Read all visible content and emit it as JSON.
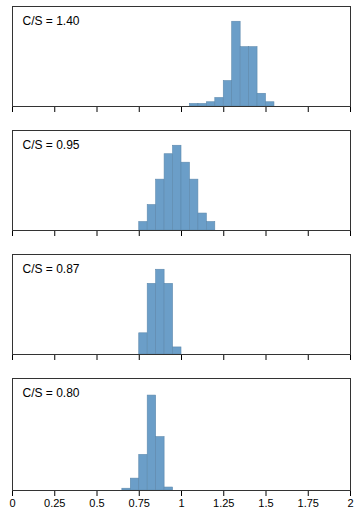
{
  "chart_data": [
    {
      "type": "histogram",
      "title": "C/S = 1.40",
      "bins": [
        1.05,
        1.1,
        1.15,
        1.2,
        1.25,
        1.3,
        1.35,
        1.4,
        1.45,
        1.5,
        1.55
      ],
      "values": [
        0.3,
        0.3,
        0.5,
        1,
        3,
        10,
        7,
        7,
        1.5,
        0.5
      ],
      "color": "#6b9ec8",
      "xlim": [
        0,
        2
      ],
      "xticks": [
        0,
        0.25,
        0.5,
        0.75,
        1,
        1.25,
        1.5,
        1.75,
        2
      ],
      "ylim": [
        0,
        11.8
      ],
      "tick_labels": false
    },
    {
      "type": "histogram",
      "title": "C/S = 0.95",
      "bins": [
        0.75,
        0.8,
        0.85,
        0.9,
        0.95,
        1.0,
        1.05,
        1.1,
        1.15,
        1.2
      ],
      "values": [
        1,
        3,
        6,
        9,
        10,
        8,
        6,
        2,
        1
      ],
      "color": "#6b9ec8",
      "xlim": [
        0,
        2
      ],
      "xticks": [
        0,
        0.25,
        0.5,
        0.75,
        1,
        1.25,
        1.5,
        1.75,
        2
      ],
      "ylim": [
        0,
        11.8
      ],
      "tick_labels": false
    },
    {
      "type": "histogram",
      "title": "C/S = 0.87",
      "bins": [
        0.75,
        0.8,
        0.85,
        0.9,
        0.95,
        1.0
      ],
      "values": [
        3,
        10,
        12,
        10,
        1
      ],
      "color": "#6b9ec8",
      "xlim": [
        0,
        2
      ],
      "xticks": [
        0,
        0.25,
        0.5,
        0.75,
        1,
        1.25,
        1.5,
        1.75,
        2
      ],
      "ylim": [
        0,
        14.16
      ],
      "tick_labels": false
    },
    {
      "type": "histogram",
      "title": "C/S = 0.80",
      "bins": [
        0.65,
        0.7,
        0.75,
        0.8,
        0.85,
        0.9,
        0.95
      ],
      "values": [
        0.3,
        2,
        6,
        16,
        9,
        0.5
      ],
      "color": "#6b9ec8",
      "xlim": [
        0,
        2
      ],
      "xticks": [
        0,
        0.25,
        0.5,
        0.75,
        1,
        1.25,
        1.5,
        1.75,
        2
      ],
      "ylim": [
        0,
        18.88
      ],
      "tick_labels": "x"
    }
  ]
}
